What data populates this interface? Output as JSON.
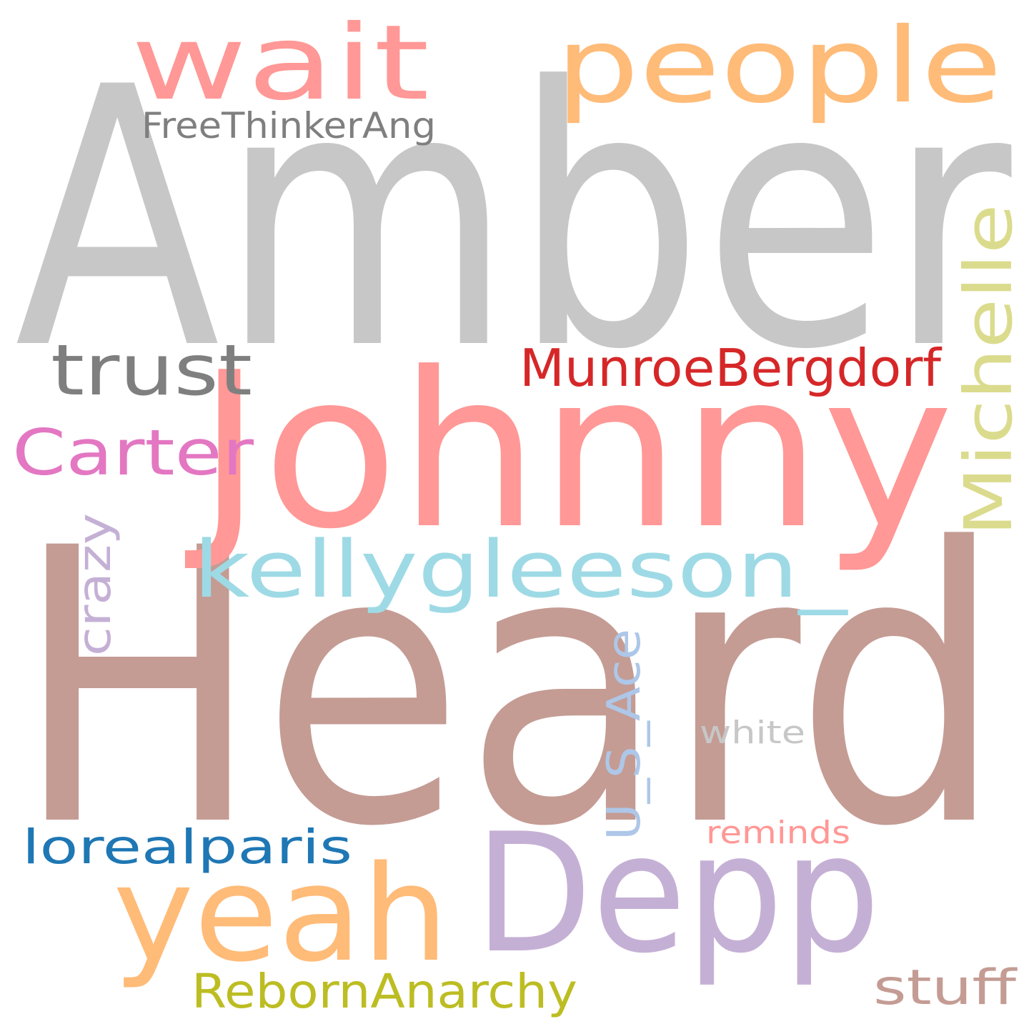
{
  "words": [
    {
      "id": "amber",
      "text": "Amber",
      "color": "#c7c7c7"
    },
    {
      "id": "heard",
      "text": "Heard",
      "color": "#c49c94"
    },
    {
      "id": "johnny",
      "text": "Johnny",
      "color": "#ff9896"
    },
    {
      "id": "depp",
      "text": "Depp",
      "color": "#c5b0d5"
    },
    {
      "id": "wait",
      "text": "wait",
      "color": "#ff9896"
    },
    {
      "id": "people",
      "text": "people",
      "color": "#ffbb78"
    },
    {
      "id": "yeah",
      "text": "yeah",
      "color": "#ffbb78"
    },
    {
      "id": "kellygleeson",
      "text": "kellygleeson_",
      "color": "#9edae5"
    },
    {
      "id": "michelle",
      "text": "Michelle",
      "color": "#dbdb8d"
    },
    {
      "id": "trust",
      "text": "trust",
      "color": "#7f7f7f"
    },
    {
      "id": "munroebergdorf",
      "text": "MunroeBergdorf",
      "color": "#d62728"
    },
    {
      "id": "carter",
      "text": "Carter",
      "color": "#e377c2"
    },
    {
      "id": "crazy",
      "text": "crazy",
      "color": "#c5b0d5"
    },
    {
      "id": "us-ace",
      "text": "U_S_Ace",
      "color": "#aec7e8"
    },
    {
      "id": "lorealparis",
      "text": "lorealparis",
      "color": "#1f77b4"
    },
    {
      "id": "rebornanarchy",
      "text": "RebornAnarchy",
      "color": "#bcbd22"
    },
    {
      "id": "stuff",
      "text": "stuff",
      "color": "#c49c94"
    },
    {
      "id": "reminds",
      "text": "reminds",
      "color": "#ff9896"
    },
    {
      "id": "white",
      "text": "white",
      "color": "#c7c7c7"
    },
    {
      "id": "freethinkerang",
      "text": "FreeThinkerAng",
      "color": "#7f7f7f"
    }
  ]
}
